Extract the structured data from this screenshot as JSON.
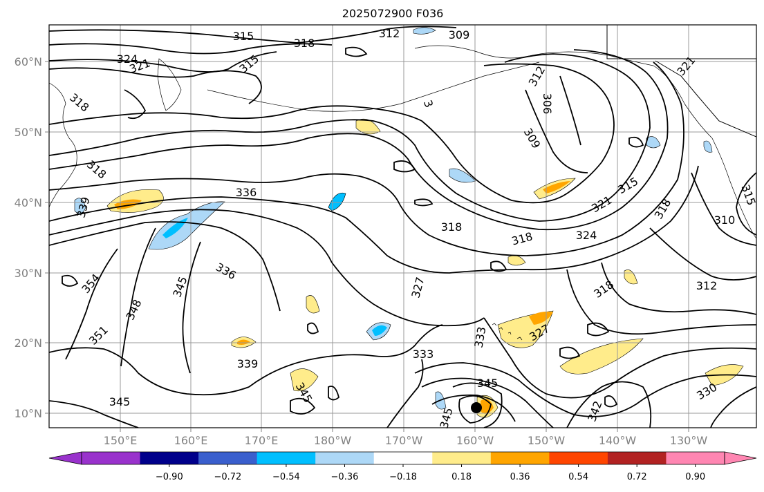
{
  "title": "2025072900 F036",
  "map": {
    "lon_ticks": [
      "150°E",
      "160°E",
      "170°E",
      "180°W",
      "170°W",
      "160°W",
      "150°W",
      "140°W",
      "130°W"
    ],
    "lat_ticks": [
      "60°N",
      "50°N",
      "40°N",
      "30°N",
      "20°N",
      "10°N"
    ],
    "grid": true,
    "contour_levels_shown": [
      306,
      309,
      312,
      315,
      318,
      321,
      324,
      327,
      330,
      333,
      336,
      339,
      342,
      345,
      348,
      351,
      354
    ],
    "contour_labels": [
      {
        "t": "315"
      },
      {
        "t": "318"
      },
      {
        "t": "312"
      },
      {
        "t": "309"
      },
      {
        "t": "324"
      },
      {
        "t": "321"
      },
      {
        "t": "315"
      },
      {
        "t": "318"
      },
      {
        "t": "318"
      },
      {
        "t": "3"
      },
      {
        "t": "312"
      },
      {
        "t": "306"
      },
      {
        "t": "321"
      },
      {
        "t": "309"
      },
      {
        "t": "336"
      },
      {
        "t": "339"
      },
      {
        "t": "318"
      },
      {
        "t": "318"
      },
      {
        "t": "315"
      },
      {
        "t": "321"
      },
      {
        "t": "324"
      },
      {
        "t": "318"
      },
      {
        "t": "336"
      },
      {
        "t": "345"
      },
      {
        "t": "348"
      },
      {
        "t": "354"
      },
      {
        "t": "351"
      },
      {
        "t": "327"
      },
      {
        "t": "318"
      },
      {
        "t": "312"
      },
      {
        "t": "327"
      },
      {
        "t": "333"
      },
      {
        "t": "333"
      },
      {
        "t": "339"
      },
      {
        "t": "345"
      },
      {
        "t": "345"
      },
      {
        "t": "345"
      },
      {
        "t": "345"
      },
      {
        "t": "342"
      },
      {
        "t": "330"
      },
      {
        "t": "315"
      },
      {
        "t": "310"
      }
    ]
  },
  "colorbar": {
    "ticks": [
      "−0.90",
      "−0.72",
      "−0.54",
      "−0.36",
      "−0.18",
      "0.18",
      "0.36",
      "0.54",
      "0.72",
      "0.90"
    ],
    "colors": [
      "#9932CC",
      "#9932CC",
      "#00008B",
      "#3A5FCD",
      "#00BFFF",
      "#ADD8F7",
      "#FFFFFF",
      "#FFEC8B",
      "#FFA500",
      "#FF4500",
      "#B22222",
      "#FF86B2",
      "#FF86B2"
    ]
  }
}
